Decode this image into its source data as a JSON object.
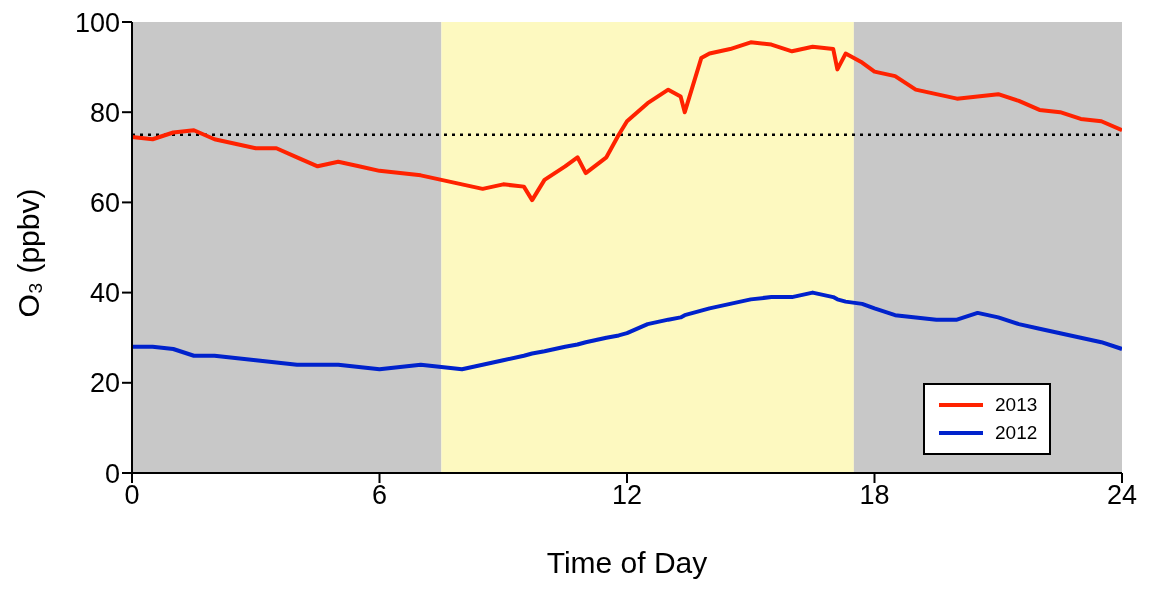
{
  "chart_data": {
    "type": "line",
    "xlabel": "Time of Day",
    "ylabel": "O₃ (ppbv)",
    "x": [
      0,
      0.5,
      1,
      1.5,
      2,
      2.5,
      3,
      3.5,
      4,
      4.5,
      5,
      5.5,
      6,
      6.5,
      7,
      7.5,
      8,
      8.5,
      9,
      9.5,
      9.7,
      10,
      10.5,
      10.8,
      11,
      11.5,
      11.8,
      12,
      12.5,
      13,
      13.3,
      13.4,
      13.6,
      13.8,
      14,
      14.5,
      15,
      15.5,
      16,
      16.5,
      17,
      17.1,
      17.3,
      17.7,
      18,
      18.5,
      19,
      19.5,
      20,
      20.5,
      21,
      21.5,
      22,
      22.5,
      23,
      23.5,
      24
    ],
    "series": [
      {
        "name": "2013",
        "color": "#ff2200",
        "values": [
          74.5,
          74,
          75.5,
          76,
          74,
          73,
          72,
          72,
          70,
          68,
          69,
          68,
          67,
          66.5,
          66,
          65,
          64,
          63,
          64,
          63.5,
          60.5,
          65,
          68,
          70,
          66.5,
          70,
          75,
          78,
          82,
          85,
          83.5,
          80,
          86,
          92,
          93,
          94,
          95.5,
          95,
          93.5,
          94.5,
          94,
          89.5,
          93,
          91,
          89,
          88,
          85,
          84,
          83,
          83.5,
          84,
          82.5,
          80.5,
          80,
          78.5,
          78,
          76
        ]
      },
      {
        "name": "2012",
        "color": "#0022cc",
        "values": [
          28,
          28,
          27.5,
          26,
          26,
          25.5,
          25,
          24.5,
          24,
          24,
          24,
          23.5,
          23,
          23.5,
          24,
          23.5,
          23,
          24,
          25,
          26,
          26.5,
          27,
          28,
          28.5,
          29,
          30,
          30.5,
          31,
          33,
          34,
          34.5,
          35,
          35.5,
          36,
          36.5,
          37.5,
          38.5,
          39,
          39,
          40,
          39,
          38.5,
          38,
          37.5,
          36.5,
          35,
          34.5,
          34,
          34,
          35.5,
          34.5,
          33,
          32,
          31,
          30,
          29,
          27.5
        ]
      }
    ],
    "xlim": [
      0,
      24
    ],
    "xticks": [
      0,
      6,
      12,
      18,
      24
    ],
    "ylim": [
      0,
      100
    ],
    "yticks": [
      0,
      20,
      40,
      60,
      80,
      100
    ],
    "bands": [
      {
        "axis": "x",
        "from": 0,
        "to": 7.5,
        "color": "#c8c8c8"
      },
      {
        "axis": "x",
        "from": 7.5,
        "to": 17.5,
        "color": "#fdf9c0"
      },
      {
        "axis": "x",
        "from": 17.5,
        "to": 24,
        "color": "#c8c8c8"
      }
    ],
    "ref_lines": [
      {
        "axis": "y",
        "value": 75,
        "color": "#000000",
        "line_style": "dotted"
      }
    ],
    "legend": "bottom right",
    "marker": "none",
    "line_style": "solid"
  }
}
